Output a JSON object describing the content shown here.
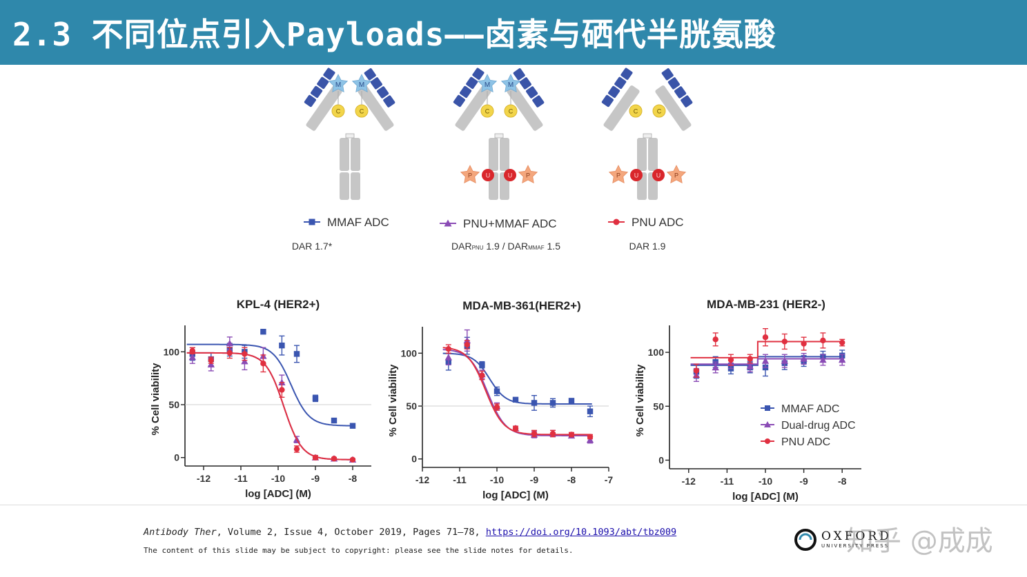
{
  "header": {
    "title": "2.3 不同位点引入Payloads——卤素与硒代半胱氨酸"
  },
  "colors": {
    "header_bg": "#2f88ab",
    "mmaf": "#3a55b0",
    "dual": "#8a4bb5",
    "pnu": "#e03040",
    "antibody_grey": "#c6c6c6",
    "light_chain_blue": "#3a54a8",
    "linker_yellow": "#f2d54a",
    "mmaf_star": "#8ec3e6",
    "pnu_star": "#f4a77d",
    "selenocysteine_red": "#d9262b"
  },
  "constructs": [
    {
      "id": "mmaf",
      "legend": "MMAF ADC",
      "dar": "DAR 1.7*",
      "marker": "square",
      "top_payload": "M",
      "top_linker": "C",
      "bottom": false
    },
    {
      "id": "dual",
      "legend": "PNU+MMAF ADC",
      "dar_prefix1": "DAR",
      "dar_sub1": "PNU",
      "dar_mid": " 1.9 / DAR",
      "dar_sub2": "MMAF",
      "dar_suffix": " 1.5",
      "marker": "triangle",
      "top_payload": "M",
      "top_linker": "C",
      "bottom": true,
      "bottom_payload": "P",
      "bottom_linker": "U"
    },
    {
      "id": "pnu",
      "legend": "PNU ADC",
      "dar": "DAR 1.9",
      "marker": "circle",
      "top_payload": null,
      "top_linker": "C",
      "bottom": true,
      "bottom_payload": "P",
      "bottom_linker": "U"
    }
  ],
  "chart_data": [
    {
      "type": "line",
      "title": "KPL-4 (HER2+)",
      "xlabel": "log [ADC] (M)",
      "ylabel": "% Cell viability",
      "xlim": [
        -12.5,
        -7.5
      ],
      "ylim": [
        -8,
        125
      ],
      "xticks": [
        -12,
        -11,
        -10,
        -9,
        -8
      ],
      "yticks": [
        0,
        50,
        100
      ],
      "reference_line": 50,
      "series": [
        {
          "key": "mmaf",
          "color": "#3a55b0",
          "marker": "square",
          "x": [
            -12.3,
            -11.8,
            -11.3,
            -10.9,
            -10.4,
            -9.9,
            -9.5,
            -9.0,
            -8.5,
            -8.0
          ],
          "y": [
            98,
            93,
            102,
            100,
            119,
            106,
            98,
            56,
            35,
            30
          ],
          "err": [
            6,
            6,
            6,
            6,
            0,
            9,
            8,
            3,
            2,
            2
          ],
          "fit": {
            "top": 107,
            "bottom": 30,
            "logec50": -9.65,
            "hill": 1.8
          }
        },
        {
          "key": "dual",
          "color": "#8a4bb5",
          "marker": "triangle",
          "x": [
            -12.3,
            -11.8,
            -11.3,
            -10.9,
            -10.4,
            -9.9,
            -9.5,
            -9.0,
            -8.5,
            -8.0
          ],
          "y": [
            95,
            88,
            108,
            91,
            96,
            71,
            17,
            0,
            -1,
            -2
          ],
          "err": [
            6,
            6,
            6,
            8,
            8,
            7,
            3,
            2,
            1,
            1
          ],
          "fit": {
            "top": 99,
            "bottom": -2,
            "logec50": -9.85,
            "hill": 1.8
          }
        },
        {
          "key": "pnu",
          "color": "#e03040",
          "marker": "circle",
          "x": [
            -12.3,
            -11.8,
            -11.3,
            -10.9,
            -10.4,
            -9.9,
            -9.5,
            -9.0,
            -8.5,
            -8.0
          ],
          "y": [
            101,
            92,
            99,
            98,
            89,
            64,
            8,
            0,
            -1,
            -2
          ],
          "err": [
            3,
            3,
            5,
            6,
            8,
            7,
            3,
            2,
            1,
            1
          ],
          "fit": {
            "top": 99,
            "bottom": -2,
            "logec50": -9.85,
            "hill": 1.8
          }
        }
      ]
    },
    {
      "type": "line",
      "title": "MDA-MB-361(HER2+)",
      "xlabel": "log [ADC] (M)",
      "ylabel": "% Cell viability",
      "xlim": [
        -12,
        -7
      ],
      "ylim": [
        -8,
        125
      ],
      "xticks": [
        -12,
        -11,
        -10,
        -9,
        -8,
        -7
      ],
      "yticks": [
        0,
        50,
        100
      ],
      "reference_line": 50,
      "series": [
        {
          "key": "mmaf",
          "color": "#3a55b0",
          "marker": "square",
          "x": [
            -11.3,
            -10.8,
            -10.4,
            -10.0,
            -9.5,
            -9.0,
            -8.5,
            -8.0,
            -7.5
          ],
          "y": [
            92,
            107,
            89,
            64,
            56,
            53,
            53,
            55,
            45
          ],
          "err": [
            8,
            8,
            3,
            4,
            2,
            7,
            4,
            2,
            5
          ],
          "fit": {
            "top": 100,
            "bottom": 52,
            "logec50": -10.2,
            "hill": 2.0
          }
        },
        {
          "key": "dual",
          "color": "#8a4bb5",
          "marker": "triangle",
          "x": [
            -11.3,
            -10.8,
            -10.4,
            -10.0,
            -9.5,
            -9.0,
            -8.5,
            -8.0,
            -7.5
          ],
          "y": [
            96,
            112,
            80,
            50,
            29,
            23,
            24,
            22,
            18
          ],
          "err": [
            7,
            10,
            4,
            3,
            2,
            3,
            3,
            2,
            3
          ],
          "fit": {
            "top": 104,
            "bottom": 22,
            "logec50": -10.25,
            "hill": 1.8
          }
        },
        {
          "key": "pnu",
          "color": "#e03040",
          "marker": "circle",
          "x": [
            -11.3,
            -10.8,
            -10.4,
            -10.0,
            -9.5,
            -9.0,
            -8.5,
            -8.0,
            -7.5
          ],
          "y": [
            104,
            108,
            79,
            49,
            29,
            24,
            24,
            23,
            21
          ],
          "err": [
            4,
            4,
            4,
            3,
            2,
            3,
            3,
            2,
            2
          ],
          "fit": {
            "top": 106,
            "bottom": 23,
            "logec50": -10.3,
            "hill": 1.8
          }
        }
      ]
    },
    {
      "type": "line",
      "title": "MDA-MB-231 (HER2-)",
      "xlabel": "log [ADC] (M)",
      "ylabel": "% Cell viability",
      "xlim": [
        -12.5,
        -7.5
      ],
      "ylim": [
        -8,
        125
      ],
      "xticks": [
        -12,
        -11,
        -10,
        -9,
        -8
      ],
      "yticks": [
        0,
        50,
        100
      ],
      "reference_line": null,
      "legend_position": "right",
      "legend": [
        {
          "key": "mmaf",
          "label": "MMAF ADC"
        },
        {
          "key": "dual",
          "label": "Dual-drug ADC"
        },
        {
          "key": "pnu",
          "label": "PNU ADC"
        }
      ],
      "series": [
        {
          "key": "mmaf",
          "color": "#3a55b0",
          "marker": "square",
          "x": [
            -11.8,
            -11.3,
            -10.9,
            -10.4,
            -10.0,
            -9.5,
            -9.0,
            -8.5,
            -8.0
          ],
          "y": [
            82,
            91,
            85,
            86,
            86,
            90,
            92,
            96,
            97
          ],
          "err": [
            6,
            5,
            5,
            5,
            8,
            6,
            5,
            5,
            5
          ],
          "fit": {
            "step_x": -10.2,
            "left": 88,
            "right": 96
          }
        },
        {
          "key": "dual",
          "color": "#8a4bb5",
          "marker": "triangle",
          "x": [
            -11.8,
            -11.3,
            -10.9,
            -10.4,
            -10.0,
            -9.5,
            -9.0,
            -8.5,
            -8.0
          ],
          "y": [
            79,
            86,
            90,
            87,
            92,
            92,
            94,
            93,
            93
          ],
          "err": [
            6,
            5,
            5,
            5,
            6,
            6,
            5,
            5,
            5
          ],
          "fit": {
            "step_x": -10.2,
            "left": 89,
            "right": 94
          }
        },
        {
          "key": "pnu",
          "color": "#e03040",
          "marker": "circle",
          "x": [
            -11.8,
            -11.3,
            -10.9,
            -10.4,
            -10.0,
            -9.5,
            -9.0,
            -8.5,
            -8.0
          ],
          "y": [
            83,
            112,
            93,
            94,
            114,
            110,
            108,
            111,
            109
          ],
          "err": [
            6,
            6,
            5,
            4,
            8,
            7,
            6,
            7,
            3
          ],
          "fit": {
            "step_x": -10.2,
            "left": 95,
            "right": 110
          }
        }
      ]
    }
  ],
  "footer": {
    "journal": "Antibody Ther",
    "citation_rest": ", Volume 2, Issue 4, October 2019, Pages 71–78, ",
    "doi_link": "https://doi.org/10.1093/abt/tbz009",
    "copyright": "The content of this slide may be subject to copyright: please see the slide notes for details.",
    "publisher": "OXFORD",
    "publisher_sub": "UNIVERSITY PRESS",
    "watermark": "知乎 @成成"
  }
}
